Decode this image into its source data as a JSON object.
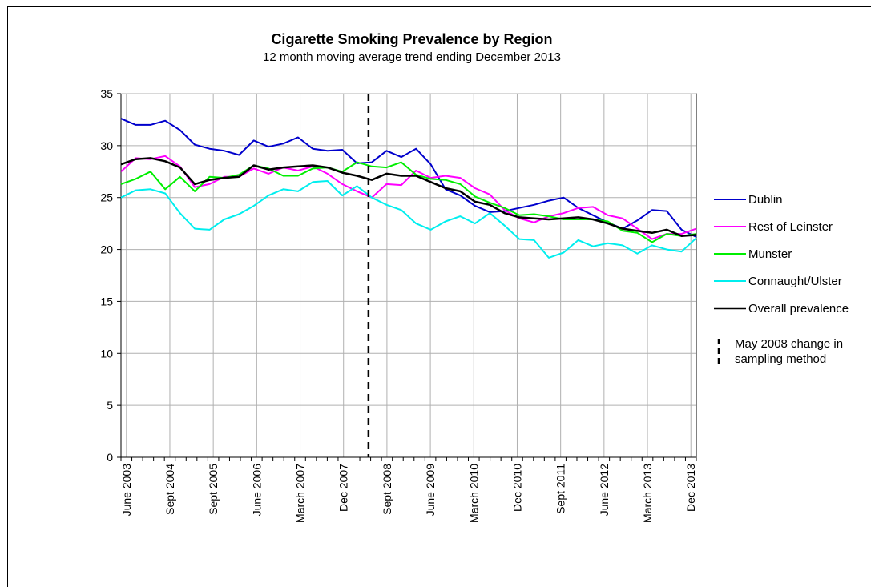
{
  "chart_data": {
    "type": "line",
    "title": "Cigarette Smoking Prevalence by Region",
    "subtitle": "12 month moving average trend ending December 2013",
    "ylim": [
      0,
      35
    ],
    "yticks": [
      0,
      5,
      10,
      15,
      20,
      25,
      30,
      35
    ],
    "grid": true,
    "legend_position": "right",
    "x_tick_labels": [
      "June 2003",
      "Sept 2004",
      "Sept 2005",
      "June 2006",
      "March 2007",
      "Dec 2007",
      "Sept 2008",
      "June 2009",
      "March 2010",
      "Dec 2010",
      "Sept 2011",
      "June 2012",
      "March 2013",
      "Dec 2013"
    ],
    "x_tick_positions": [
      0,
      4,
      8,
      12,
      16,
      20,
      24,
      28,
      32,
      36,
      40,
      44,
      48,
      52
    ],
    "vertical_marker": {
      "position": 22.3,
      "label_line1": "May 2008 change in",
      "label_line2": "sampling method",
      "color": "#000000"
    },
    "series": [
      {
        "name": "Dublin",
        "color": "#0000cc",
        "values": [
          32.6,
          32.0,
          32.0,
          32.4,
          31.5,
          30.1,
          29.7,
          29.5,
          29.1,
          30.5,
          29.9,
          30.2,
          30.8,
          29.7,
          29.5,
          29.6,
          28.3,
          28.4,
          29.5,
          28.9,
          29.7,
          28.2,
          25.8,
          25.2,
          24.2,
          23.6,
          23.7,
          24.0,
          24.3,
          24.7,
          25.0,
          24.0,
          23.3,
          22.6,
          22.0,
          22.8,
          23.8,
          23.7,
          21.9,
          21.2
        ]
      },
      {
        "name": "Rest of Leinster",
        "color": "#ff00ff",
        "values": [
          27.5,
          28.8,
          28.7,
          29.0,
          28.0,
          26.0,
          26.3,
          27.0,
          27.0,
          27.8,
          27.3,
          27.9,
          27.6,
          28.0,
          27.3,
          26.3,
          25.6,
          25.0,
          26.3,
          26.2,
          27.6,
          26.9,
          27.1,
          26.9,
          25.9,
          25.3,
          23.8,
          23.0,
          22.6,
          23.2,
          23.5,
          24.0,
          24.1,
          23.3,
          23.0,
          22.0,
          21.0,
          21.5,
          21.5,
          22.0
        ]
      },
      {
        "name": "Munster",
        "color": "#00ee00",
        "values": [
          26.3,
          26.8,
          27.5,
          25.8,
          27.0,
          25.6,
          27.0,
          26.9,
          27.2,
          28.1,
          27.8,
          27.1,
          27.1,
          27.8,
          27.9,
          27.5,
          28.4,
          28.0,
          27.9,
          28.4,
          27.2,
          26.8,
          26.7,
          26.3,
          25.1,
          24.5,
          24.0,
          23.3,
          23.4,
          23.2,
          22.9,
          22.9,
          22.9,
          22.7,
          21.8,
          21.6,
          20.7,
          21.5,
          21.3,
          21.5
        ]
      },
      {
        "name": "Connaught/Ulster",
        "color": "#00eeee",
        "values": [
          25.0,
          25.7,
          25.8,
          25.4,
          23.5,
          22.0,
          21.9,
          22.9,
          23.4,
          24.2,
          25.2,
          25.8,
          25.6,
          26.5,
          26.6,
          25.2,
          26.1,
          25.0,
          24.3,
          23.8,
          22.5,
          21.9,
          22.7,
          23.2,
          22.5,
          23.5,
          22.3,
          21.0,
          20.9,
          19.2,
          19.7,
          20.9,
          20.3,
          20.6,
          20.4,
          19.6,
          20.4,
          20.0,
          19.8,
          21.1
        ]
      },
      {
        "name": "Overall prevalence",
        "color": "#000000",
        "values": [
          28.2,
          28.7,
          28.8,
          28.5,
          27.9,
          26.3,
          26.7,
          26.9,
          27.0,
          28.1,
          27.7,
          27.9,
          28.0,
          28.1,
          27.9,
          27.4,
          27.1,
          26.7,
          27.3,
          27.1,
          27.1,
          26.5,
          25.9,
          25.6,
          24.6,
          24.3,
          23.5,
          23.1,
          23.0,
          22.9,
          23.0,
          23.1,
          22.9,
          22.5,
          22.0,
          21.8,
          21.6,
          21.9,
          21.3,
          21.4
        ]
      }
    ]
  }
}
